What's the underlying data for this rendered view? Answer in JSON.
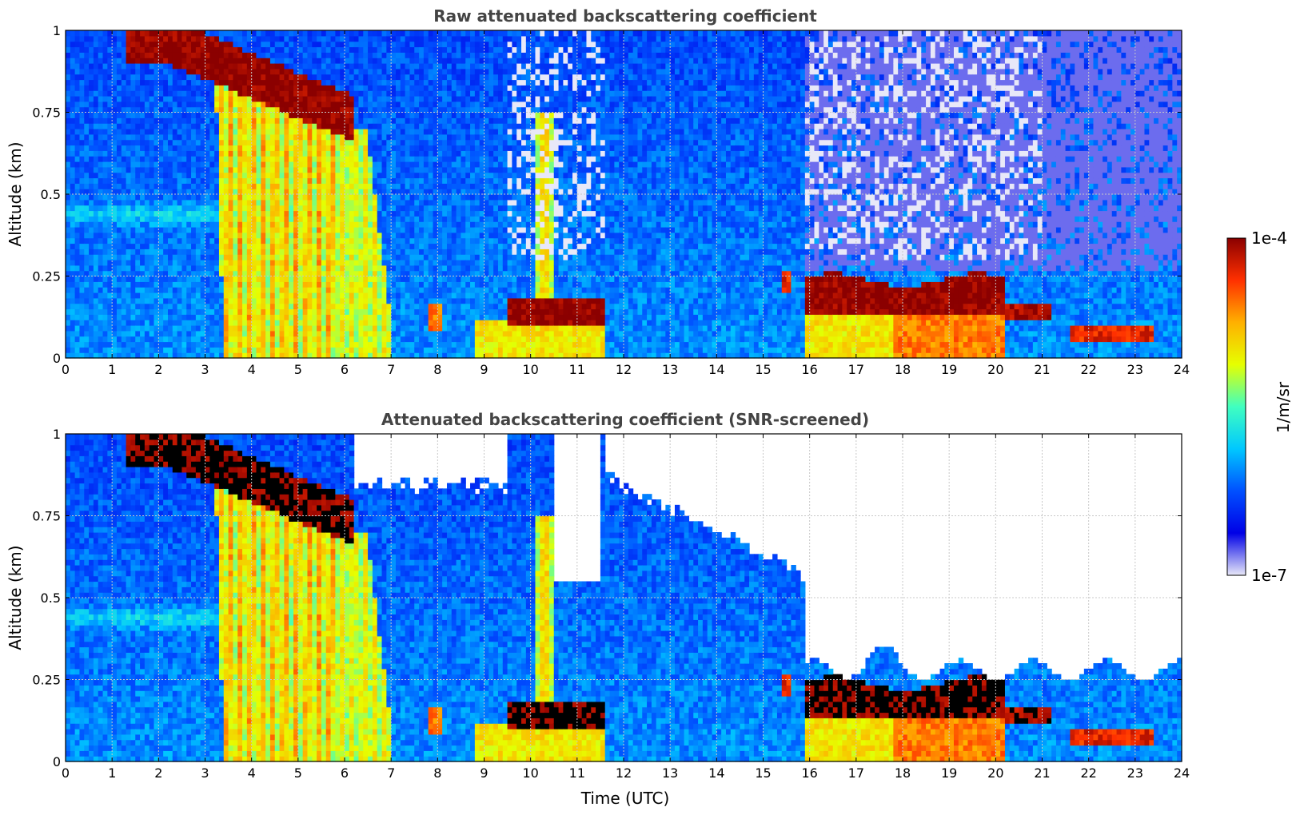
{
  "colormap": [
    "#e8e8f8",
    "#0000e6",
    "#0050ff",
    "#00c8ff",
    "#40ffc0",
    "#e6ff00",
    "#ffb000",
    "#ff3000",
    "#8b0000"
  ],
  "colors": {
    "saturated": "#000000",
    "grid": "#c8c8c8",
    "axis": "#000000"
  },
  "colorbar": {
    "label": "1/m/sr",
    "max_label": "1e-4",
    "min_label": "1e-7",
    "range_log10": [
      -7,
      -4
    ]
  },
  "chart_data": [
    {
      "type": "heatmap",
      "title": "Raw attenuated backscattering coefficient",
      "xlabel": "",
      "ylabel": "Altitude (km)",
      "xlim": [
        0,
        24
      ],
      "ylim": [
        0,
        1
      ],
      "xticks": [
        "0",
        "1",
        "2",
        "3",
        "4",
        "5",
        "6",
        "7",
        "8",
        "9",
        "10",
        "11",
        "12",
        "13",
        "14",
        "15",
        "16",
        "17",
        "18",
        "19",
        "20",
        "21",
        "22",
        "23",
        "24"
      ],
      "yticks": [
        "0",
        "0.25",
        "0.5",
        "0.75",
        "1"
      ],
      "grid": true,
      "z_units": "1/m/sr",
      "features": [
        {
          "feature": "elevated aerosol/cloud layer",
          "t_start": 1.3,
          "t_end": 6.2,
          "alt_top": 1.0,
          "alt_bottom": 0.72,
          "log10_beta": -4.0
        },
        {
          "feature": "precipitation streaks",
          "t_start": 3.2,
          "t_end": 7.0,
          "alt_top": 0.8,
          "alt_bottom": 0.0,
          "log10_beta": -5.0
        },
        {
          "feature": "low cloud layer",
          "t_start": 9.5,
          "t_end": 11.5,
          "alt_top": 0.19,
          "alt_bottom": 0.1,
          "log10_beta": -4.0
        },
        {
          "feature": "low cloud layer",
          "t_start": 15.9,
          "t_end": 20.2,
          "alt_top": 0.24,
          "alt_bottom": 0.13,
          "log10_beta": -4.0
        },
        {
          "feature": "noise region",
          "t_start": 15.9,
          "t_end": 24,
          "alt_top": 1.0,
          "alt_bottom": 0.3,
          "log10_beta": -7.0
        }
      ]
    },
    {
      "type": "heatmap",
      "title": "Attenuated backscattering coefficient (SNR-screened)",
      "xlabel": "Time (UTC)",
      "ylabel": "Altitude (km)",
      "xlim": [
        0,
        24
      ],
      "ylim": [
        0,
        1
      ],
      "xticks": [
        "0",
        "1",
        "2",
        "3",
        "4",
        "5",
        "6",
        "7",
        "8",
        "9",
        "10",
        "11",
        "12",
        "13",
        "14",
        "15",
        "16",
        "17",
        "18",
        "19",
        "20",
        "21",
        "22",
        "23",
        "24"
      ],
      "yticks": [
        "0",
        "0.25",
        "0.5",
        "0.75",
        "1"
      ],
      "grid": true,
      "z_units": "1/m/sr",
      "features": [
        {
          "feature": "saturated layer",
          "t_start": 1.3,
          "t_end": 6.2,
          "alt_top": 1.0,
          "alt_bottom": 0.72,
          "log10_beta": -3.9
        },
        {
          "feature": "precipitation streaks",
          "t_start": 3.2,
          "t_end": 7.0,
          "alt_top": 0.8,
          "alt_bottom": 0.0,
          "log10_beta": -5.0
        },
        {
          "feature": "saturated low cloud",
          "t_start": 9.5,
          "t_end": 11.5,
          "alt_top": 0.2,
          "alt_bottom": 0.1,
          "log10_beta": -3.9
        },
        {
          "feature": "saturated low cloud",
          "t_start": 16.0,
          "t_end": 21.2,
          "alt_top": 0.24,
          "alt_bottom": 0.12,
          "log10_beta": -3.9
        },
        {
          "feature": "screened (no data)",
          "t_start": 16.0,
          "t_end": 24,
          "alt_top": 1.0,
          "alt_bottom": 0.3,
          "log10_beta": null
        }
      ]
    }
  ]
}
